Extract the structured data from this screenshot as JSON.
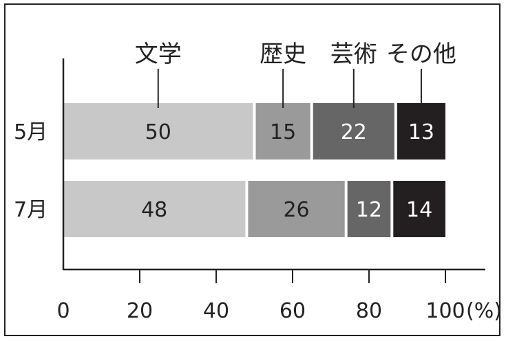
{
  "chart_data": {
    "type": "bar",
    "stacked": true,
    "orientation": "horizontal",
    "categories": [
      "5月",
      "7月"
    ],
    "series": [
      {
        "name": "文学",
        "values": [
          50,
          48
        ],
        "color": "#c8c8c8",
        "label_color": "#222222"
      },
      {
        "name": "歴史",
        "values": [
          15,
          26
        ],
        "color": "#9a9a9a",
        "label_color": "#222222"
      },
      {
        "name": "芸術",
        "values": [
          22,
          12
        ],
        "color": "#666666",
        "label_color": "#ffffff"
      },
      {
        "name": "その他",
        "values": [
          13,
          14
        ],
        "color": "#231f20",
        "label_color": "#ffffff"
      }
    ],
    "xlim": [
      0,
      100
    ],
    "xticks": [
      0,
      20,
      40,
      60,
      80,
      100
    ],
    "xunit": "(%)",
    "legend_placement": "top, labels with leader lines to 5月 bar",
    "grid": false
  }
}
